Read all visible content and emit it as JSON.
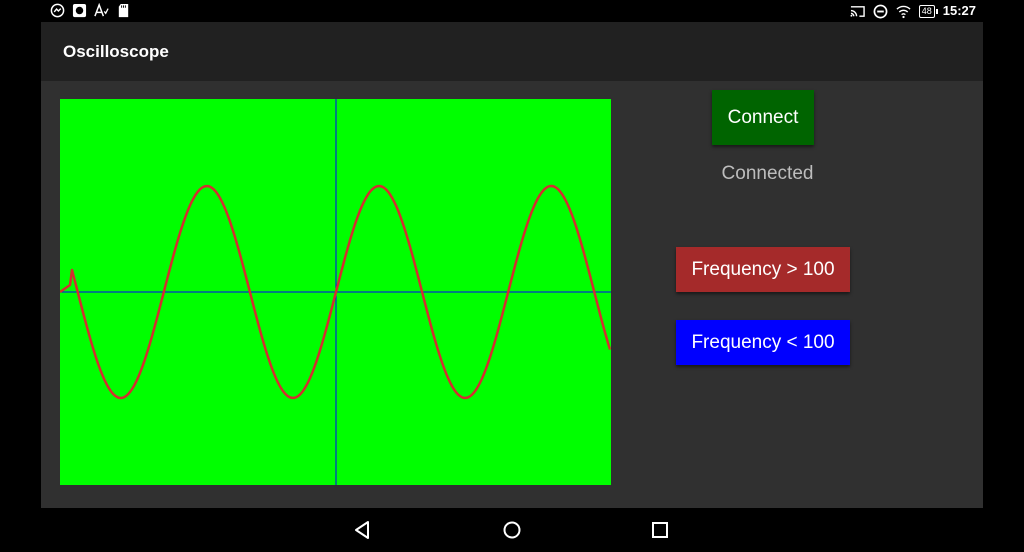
{
  "status_bar": {
    "time": "15:27",
    "battery_level": "48",
    "left_icons": [
      "messenger-icon",
      "record-icon",
      "text-format-icon",
      "sd-card-icon"
    ],
    "right_icons": [
      "cast-icon",
      "do-not-disturb-icon",
      "wifi-icon",
      "battery-icon"
    ]
  },
  "toolbar": {
    "title": "Oscilloscope"
  },
  "controls": {
    "connect_label": "Connect",
    "connection_status": "Connected",
    "freq_high_label": "Frequency > 100",
    "freq_low_label": "Frequency < 100"
  },
  "colors": {
    "scope_background": "#00ff00",
    "waveform": "#d32f2f",
    "axes": "#0000ff",
    "connect_button": "#006400",
    "freq_high_button": "#a52a2a",
    "freq_low_button": "#0000ff"
  },
  "waveform": {
    "type": "sine",
    "cycles_visible": 3.2
  },
  "navigation": [
    "back-icon",
    "home-icon",
    "recents-icon"
  ]
}
